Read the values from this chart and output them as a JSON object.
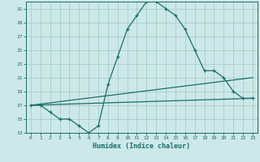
{
  "xlabel": "Humidex (Indice chaleur)",
  "bg_color": "#cce8e8",
  "grid_color": "#a0c8c4",
  "line_color": "#1a6e6a",
  "xlim": [
    -0.5,
    23.5
  ],
  "ylim": [
    13,
    32
  ],
  "xticks": [
    0,
    1,
    2,
    3,
    4,
    5,
    6,
    7,
    8,
    9,
    10,
    11,
    12,
    13,
    14,
    15,
    16,
    17,
    18,
    19,
    20,
    21,
    22,
    23
  ],
  "yticks": [
    13,
    15,
    17,
    19,
    21,
    23,
    25,
    27,
    29,
    31
  ],
  "curve1_x": [
    0,
    1,
    2,
    3,
    4,
    5,
    6,
    7,
    8,
    9,
    10,
    11,
    12,
    13,
    14,
    15,
    16,
    17,
    18,
    19,
    20,
    21,
    22,
    23
  ],
  "curve1_y": [
    17,
    17,
    16,
    15,
    15,
    14,
    13,
    14,
    20,
    24,
    28,
    30,
    32,
    32,
    31,
    30,
    28,
    25,
    22,
    22,
    21,
    19,
    18,
    18
  ],
  "curve2_x": [
    0,
    23
  ],
  "curve2_y": [
    17,
    21
  ],
  "curve3_x": [
    0,
    23
  ],
  "curve3_y": [
    17,
    18
  ]
}
